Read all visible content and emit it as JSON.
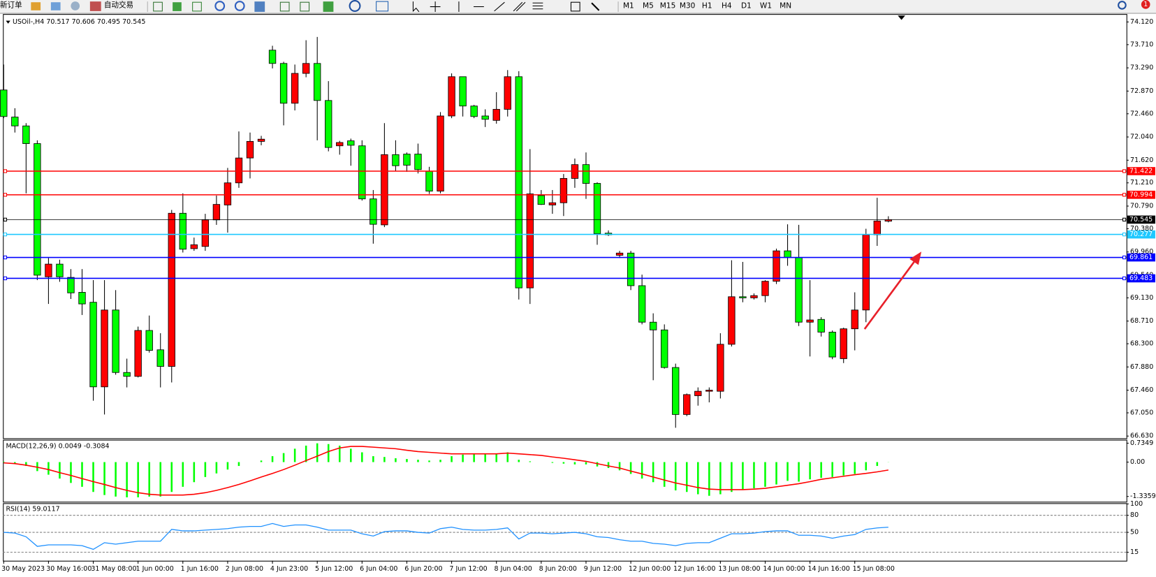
{
  "toolbar": {
    "new_order": "新订单",
    "auto_trading": "自动交易",
    "timeframes": [
      "M1",
      "M5",
      "M15",
      "M30",
      "H1",
      "H4",
      "D1",
      "W1",
      "MN"
    ],
    "badge": "1"
  },
  "chart_data": [
    {
      "type": "candlestick",
      "title": "USOil-,H4 70.517 70.606 70.495 70.545",
      "up_color": "#ff0000",
      "down_color": "#00ff00",
      "categories": [
        "30 May 2023",
        null,
        null,
        null,
        "30 May 16:00",
        null,
        null,
        null,
        "31 May 08:00",
        null,
        null,
        null,
        "1 Jun 00:00",
        null,
        null,
        null,
        "1 Jun 16:00",
        null,
        null,
        null,
        "2 Jun 08:00",
        null,
        null,
        null,
        "4 Jun 23:00",
        null,
        null,
        null,
        "5 Jun 12:00",
        null,
        null,
        null,
        "6 Jun 04:00",
        null,
        null,
        null,
        "6 Jun 20:00",
        null,
        null,
        null,
        "7 Jun 12:00",
        null,
        null,
        null,
        "8 Jun 04:00",
        null,
        null,
        null,
        "8 Jun 20:00",
        null,
        null,
        null,
        "9 Jun 12:00",
        null,
        null,
        null,
        "12 Jun 00:00",
        null,
        null,
        null,
        "12 Jun 16:00",
        null,
        null,
        null,
        "13 Jun 08:00",
        null,
        null,
        null,
        "14 Jun 00:00",
        null,
        null,
        null,
        "14 Jun 16:00",
        null,
        null,
        null,
        "15 Jun 08:00",
        null,
        null,
        null
      ],
      "open": [
        72.89,
        72.4,
        72.24,
        71.92,
        69.51,
        69.74,
        69.5,
        69.23,
        69.05,
        67.52,
        68.91,
        67.78,
        67.71,
        68.54,
        68.19,
        67.89,
        70.66,
        70.02,
        70.06,
        70.54,
        70.81,
        71.21,
        71.66,
        71.96,
        73.61,
        73.37,
        72.65,
        73.19,
        73.37,
        72.7,
        71.88,
        71.97,
        71.88,
        70.92,
        70.45,
        71.72,
        71.73,
        71.73,
        71.42,
        71.06,
        72.42,
        73.13,
        72.6,
        72.42,
        72.34,
        72.54,
        73.13,
        69.31,
        70.98,
        70.81,
        70.85,
        71.29,
        71.54,
        71.2,
        70.3,
        69.9,
        69.94,
        69.35,
        68.69,
        68.55,
        67.87,
        67.02,
        67.36,
        67.44,
        67.44,
        68.29,
        69.15,
        69.13,
        69.17,
        69.43,
        69.98,
        69.86,
        68.69,
        68.74,
        68.51,
        68.03,
        68.57,
        68.91,
        70.27,
        70.517
      ],
      "high": [
        73.35,
        72.56,
        72.29,
        71.98,
        69.85,
        69.82,
        69.65,
        69.65,
        69.45,
        69.45,
        69.27,
        68.03,
        68.61,
        68.81,
        68.49,
        70.72,
        71.02,
        70.22,
        70.65,
        70.98,
        71.48,
        72.14,
        72.12,
        72.06,
        73.69,
        73.4,
        73.35,
        73.79,
        73.85,
        73.05,
        71.97,
        72.01,
        71.98,
        71.08,
        72.29,
        71.98,
        71.76,
        71.92,
        71.5,
        72.49,
        73.19,
        73.13,
        72.62,
        72.54,
        72.85,
        73.25,
        73.23,
        71.82,
        71.08,
        71.08,
        71.37,
        71.65,
        71.76,
        71.22,
        70.35,
        69.98,
        69.98,
        69.55,
        68.85,
        68.65,
        67.94,
        67.4,
        67.51,
        67.51,
        68.49,
        69.81,
        69.78,
        69.21,
        69.45,
        70.02,
        70.46,
        70.45,
        69.45,
        68.78,
        68.54,
        68.59,
        69.23,
        70.38,
        70.94,
        70.606
      ],
      "low": [
        72.38,
        72.12,
        71.02,
        69.45,
        69.02,
        69.42,
        69.11,
        68.82,
        67.27,
        67.02,
        67.74,
        67.51,
        67.69,
        68.14,
        67.51,
        67.6,
        69.95,
        69.98,
        69.98,
        70.45,
        70.31,
        71.12,
        71.29,
        71.89,
        73.28,
        72.25,
        72.52,
        73.12,
        71.98,
        71.78,
        71.72,
        71.52,
        70.89,
        70.11,
        70.41,
        71.42,
        71.41,
        71.38,
        71.01,
        71.02,
        72.38,
        72.41,
        72.38,
        72.22,
        72.28,
        72.41,
        69.1,
        69.02,
        70.81,
        70.65,
        70.61,
        71.12,
        70.92,
        70.09,
        70.25,
        69.85,
        69.27,
        68.65,
        67.64,
        67.85,
        66.78,
        66.99,
        67.18,
        67.24,
        67.31,
        68.25,
        69.05,
        69.1,
        69.05,
        69.38,
        69.71,
        68.62,
        68.07,
        68.43,
        68.02,
        67.95,
        68.18,
        68.69,
        70.07,
        70.495
      ],
      "close": [
        72.41,
        72.24,
        71.92,
        69.54,
        69.74,
        69.51,
        69.22,
        69.02,
        67.52,
        68.91,
        67.78,
        67.71,
        68.54,
        68.18,
        67.89,
        70.66,
        70.01,
        70.09,
        70.54,
        70.82,
        71.21,
        71.66,
        71.96,
        72.0,
        73.37,
        72.65,
        73.19,
        73.37,
        72.7,
        71.85,
        71.94,
        71.89,
        70.92,
        70.46,
        71.72,
        71.52,
        71.53,
        71.45,
        71.06,
        72.42,
        73.13,
        72.6,
        72.41,
        72.36,
        72.54,
        73.13,
        69.31,
        71.01,
        70.82,
        70.85,
        71.29,
        71.54,
        71.2,
        70.29,
        70.27,
        69.94,
        69.35,
        68.69,
        68.55,
        67.87,
        67.02,
        67.38,
        67.44,
        67.46,
        68.29,
        69.15,
        69.13,
        69.17,
        69.43,
        69.98,
        69.86,
        68.69,
        68.73,
        68.51,
        68.06,
        68.57,
        68.91,
        70.27,
        70.52,
        70.545
      ],
      "lines": [
        {
          "value": 71.422,
          "color": "#ff0000"
        },
        {
          "value": 70.994,
          "color": "#ff0000"
        },
        {
          "value": 70.545,
          "color": "#000000"
        },
        {
          "value": 70.277,
          "color": "#1ec8ff"
        },
        {
          "value": 69.861,
          "color": "#0000ff"
        },
        {
          "value": 69.483,
          "color": "#0000ff"
        }
      ],
      "ylim": [
        66.59,
        74.25
      ],
      "yticks": [
        {
          "value": 74.12,
          "label": "74.120"
        },
        {
          "value": 73.71,
          "label": "73.710"
        },
        {
          "value": 73.29,
          "label": "73.290"
        },
        {
          "value": 72.87,
          "label": "72.870"
        },
        {
          "value": 72.46,
          "label": "72.460"
        },
        {
          "value": 72.04,
          "label": "72.040"
        },
        {
          "value": 71.62,
          "label": "71.620"
        },
        {
          "value": 71.21,
          "label": "71.210"
        },
        {
          "value": 70.79,
          "label": "70.790"
        },
        {
          "value": 70.38,
          "label": "70.380"
        },
        {
          "value": 69.96,
          "label": "69.960"
        },
        {
          "value": 69.54,
          "label": "69.540"
        },
        {
          "value": 69.13,
          "label": "69.130"
        },
        {
          "value": 68.71,
          "label": "68.710"
        },
        {
          "value": 68.3,
          "label": "68.300"
        },
        {
          "value": 67.88,
          "label": "67.880"
        },
        {
          "value": 67.46,
          "label": "67.460"
        },
        {
          "value": 67.05,
          "label": "67.050"
        },
        {
          "value": 66.63,
          "label": "66.630"
        }
      ]
    },
    {
      "type": "macd",
      "title": "MACD(12,26,9) 0.0049 -0.3084",
      "color": "#00ff00",
      "signal_color": "#ff0000",
      "values": [
        0.02,
        -0.06,
        -0.15,
        -0.35,
        -0.49,
        -0.64,
        -0.81,
        -0.96,
        -1.16,
        -1.28,
        -1.34,
        -1.37,
        -1.37,
        -1.34,
        -1.34,
        -1.16,
        -0.96,
        -0.78,
        -0.58,
        -0.44,
        -0.29,
        -0.15,
        0,
        0.06,
        0.23,
        0.35,
        0.52,
        0.64,
        0.73,
        0.7,
        0.64,
        0.52,
        0.38,
        0.23,
        0.2,
        0.15,
        0.12,
        0.09,
        0.06,
        0.09,
        0.23,
        0.29,
        0.32,
        0.32,
        0.32,
        0.38,
        0.09,
        0.03,
        0,
        -0.03,
        -0.06,
        -0.09,
        -0.09,
        -0.17,
        -0.23,
        -0.32,
        -0.46,
        -0.64,
        -0.78,
        -0.96,
        -1.1,
        -1.16,
        -1.25,
        -1.31,
        -1.25,
        -1.16,
        -1.07,
        -1.02,
        -0.96,
        -0.87,
        -0.73,
        -0.76,
        -0.67,
        -0.61,
        -0.58,
        -0.52,
        -0.46,
        -0.32,
        -0.15,
        0.0049
      ],
      "signal": [
        -0.03,
        -0.06,
        -0.12,
        -0.2,
        -0.29,
        -0.41,
        -0.52,
        -0.64,
        -0.76,
        -0.87,
        -0.99,
        -1.1,
        -1.19,
        -1.25,
        -1.28,
        -1.28,
        -1.28,
        -1.25,
        -1.19,
        -1.1,
        -0.99,
        -0.87,
        -0.73,
        -0.58,
        -0.44,
        -0.29,
        -0.12,
        0.06,
        0.23,
        0.41,
        0.55,
        0.61,
        0.61,
        0.58,
        0.55,
        0.52,
        0.46,
        0.41,
        0.38,
        0.35,
        0.32,
        0.32,
        0.32,
        0.32,
        0.32,
        0.35,
        0.32,
        0.29,
        0.26,
        0.2,
        0.15,
        0.09,
        0.03,
        -0.06,
        -0.15,
        -0.23,
        -0.35,
        -0.46,
        -0.58,
        -0.7,
        -0.81,
        -0.9,
        -0.99,
        -1.05,
        -1.07,
        -1.07,
        -1.07,
        -1.05,
        -1.02,
        -0.96,
        -0.9,
        -0.84,
        -0.76,
        -0.67,
        -0.61,
        -0.55,
        -0.49,
        -0.44,
        -0.38,
        -0.3084
      ],
      "ylim": [
        -1.54,
        0.84
      ],
      "yticks": [
        0.7349,
        {
          "value": 0,
          "label": "0.00"
        },
        -1.3359
      ]
    },
    {
      "type": "line",
      "title": "RSI(14) 59.0117",
      "color": "#1e90ff",
      "values": [
        50,
        48.7,
        42.2,
        25.3,
        27.9,
        27.9,
        27.9,
        26.6,
        20.1,
        31.8,
        29.2,
        31.8,
        34.4,
        34.4,
        34.4,
        55.2,
        52.6,
        52.6,
        53.9,
        55.2,
        56.5,
        59.1,
        60.4,
        60.4,
        65.6,
        60.4,
        63,
        63,
        59.1,
        53.9,
        53.9,
        53.9,
        47.4,
        43.5,
        51.3,
        52.6,
        52.6,
        50,
        48.7,
        56.5,
        59.1,
        55.2,
        53.9,
        53.9,
        55.2,
        57.8,
        38.3,
        48.7,
        48.7,
        47.4,
        48.7,
        50,
        47.4,
        42.2,
        40.9,
        37,
        34.4,
        34.4,
        30.5,
        29.2,
        26.6,
        30.5,
        31.8,
        31.8,
        39.6,
        47.4,
        47.4,
        48.7,
        51.3,
        52.6,
        52.6,
        44.8,
        44.8,
        43.5,
        39.6,
        43.5,
        46.1,
        55.2,
        57.8,
        59.0117
      ],
      "levels": [
        80,
        50,
        15
      ],
      "ylim": [
        0,
        100
      ],
      "yticks": [
        100,
        80,
        50,
        15
      ]
    }
  ]
}
